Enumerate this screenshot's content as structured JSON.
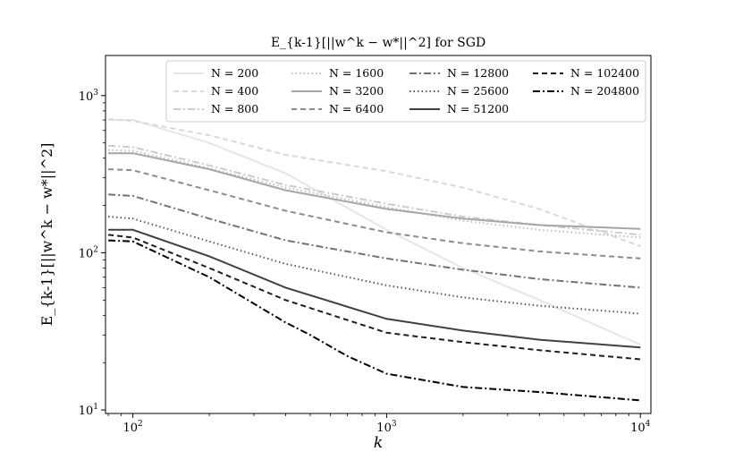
{
  "chart_data": {
    "type": "line",
    "title": "E_{k-1}[||w^k − w*||^2] for SGD",
    "xlabel": "k",
    "ylabel": "E_{k-1}[||w^k − w*||^2]",
    "xscale": "log",
    "yscale": "log",
    "xlim": [
      78,
      11000
    ],
    "ylim": [
      9.5,
      1800
    ],
    "xticks": [
      100,
      1000,
      10000
    ],
    "xtick_labels": [
      "10^2",
      "10^3",
      "10^4"
    ],
    "yticks": [
      10,
      100,
      1000
    ],
    "ytick_labels": [
      "10^1",
      "10^2",
      "10^3"
    ],
    "grid": false,
    "legend_placement": "top-right",
    "legend_columns": 4,
    "series": [
      {
        "name": "N = 200",
        "color": "#e6e6e6",
        "dash": "solid",
        "x": [
          80,
          100,
          200,
          400,
          1000,
          2000,
          4000,
          10000
        ],
        "y": [
          700,
          700,
          500,
          320,
          140,
          80,
          50,
          26
        ]
      },
      {
        "name": "N = 400",
        "color": "#d9d9d9",
        "dash": "dashed",
        "x": [
          80,
          100,
          200,
          400,
          1000,
          2000,
          4000,
          10000
        ],
        "y": [
          710,
          690,
          560,
          420,
          330,
          260,
          190,
          110
        ]
      },
      {
        "name": "N = 800",
        "color": "#cccccc",
        "dash": "dashdot",
        "x": [
          80,
          100,
          200,
          400,
          1000,
          2000,
          4000,
          10000
        ],
        "y": [
          480,
          470,
          360,
          270,
          205,
          170,
          150,
          130
        ]
      },
      {
        "name": "N = 1600",
        "color": "#bdbdbd",
        "dash": "dotted",
        "x": [
          80,
          100,
          200,
          400,
          1000,
          2000,
          4000,
          10000
        ],
        "y": [
          450,
          445,
          345,
          260,
          195,
          160,
          140,
          125
        ]
      },
      {
        "name": "N = 3200",
        "color": "#a6a6a6",
        "dash": "solid",
        "x": [
          80,
          100,
          200,
          400,
          1000,
          2000,
          4000,
          10000
        ],
        "y": [
          430,
          430,
          340,
          250,
          190,
          165,
          150,
          142
        ]
      },
      {
        "name": "N = 6400",
        "color": "#8c8c8c",
        "dash": "dashed",
        "x": [
          80,
          100,
          200,
          400,
          1000,
          2000,
          4000,
          10000
        ],
        "y": [
          340,
          335,
          250,
          185,
          135,
          115,
          102,
          92
        ]
      },
      {
        "name": "N = 12800",
        "color": "#737373",
        "dash": "dashdot",
        "x": [
          80,
          100,
          200,
          400,
          1000,
          2000,
          4000,
          10000
        ],
        "y": [
          235,
          230,
          165,
          120,
          92,
          78,
          68,
          60
        ]
      },
      {
        "name": "N = 25600",
        "color": "#595959",
        "dash": "dotted",
        "x": [
          80,
          100,
          200,
          400,
          1000,
          2000,
          4000,
          10000
        ],
        "y": [
          170,
          165,
          118,
          85,
          62,
          52,
          46,
          41
        ]
      },
      {
        "name": "N = 51200",
        "color": "#404040",
        "dash": "solid",
        "x": [
          80,
          100,
          200,
          400,
          1000,
          2000,
          4000,
          10000
        ],
        "y": [
          140,
          140,
          95,
          60,
          38,
          32,
          28,
          25
        ]
      },
      {
        "name": "N = 102400",
        "color": "#1f1f1f",
        "dash": "dashed",
        "x": [
          80,
          100,
          200,
          400,
          1000,
          2000,
          4000,
          10000
        ],
        "y": [
          130,
          125,
          80,
          50,
          31,
          27,
          24,
          21
        ]
      },
      {
        "name": "N = 204800",
        "color": "#000000",
        "dash": "dashdot",
        "x": [
          80,
          100,
          200,
          400,
          500,
          700,
          1000,
          2000,
          4000,
          10000
        ],
        "y": [
          120,
          118,
          70,
          36,
          30,
          22,
          17,
          14,
          13,
          11.5
        ]
      }
    ]
  }
}
